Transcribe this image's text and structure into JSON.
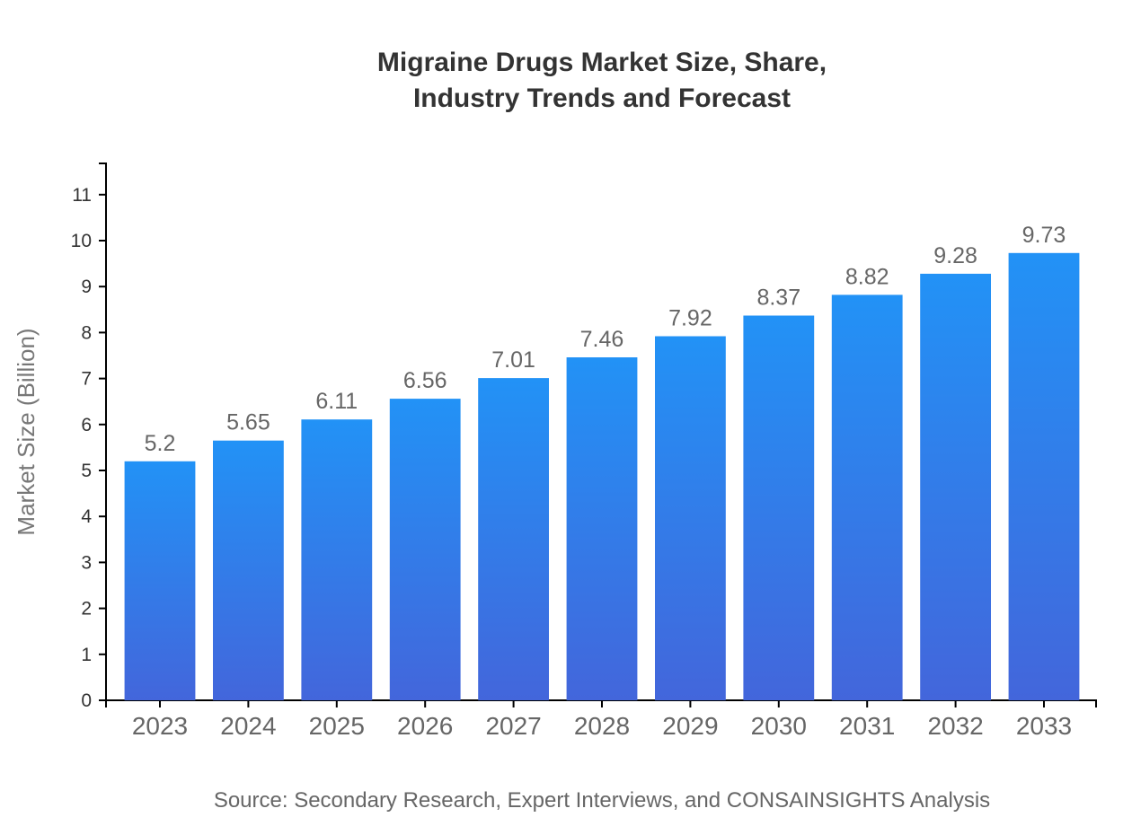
{
  "page": {
    "background": "#ffffff"
  },
  "header": {
    "title_line1": "Migraine Drugs Market Size, Share,",
    "title_line2": "Industry Trends and Forecast"
  },
  "footer": {
    "source": "Source: Secondary Research, Expert Interviews, and CONSAINSIGHTS Analysis"
  },
  "chart_data": {
    "type": "bar",
    "title": "Migraine Drugs Market Size, Share, Industry Trends and Forecast",
    "categories": [
      "2023",
      "2024",
      "2025",
      "2026",
      "2027",
      "2028",
      "2029",
      "2030",
      "2031",
      "2032",
      "2033"
    ],
    "values": [
      5.2,
      5.65,
      6.11,
      6.56,
      7.01,
      7.46,
      7.92,
      8.37,
      8.82,
      9.28,
      9.73
    ],
    "xlabel": "",
    "ylabel": "Market Size (Billion)",
    "ylim": [
      0,
      11.68
    ],
    "yticks": [
      0,
      1,
      2,
      3,
      4,
      5,
      6,
      7,
      8,
      9,
      10,
      11
    ],
    "grid": false,
    "legend": false,
    "value_labels_shown": true,
    "colors": {
      "bar_gradient_top": "#2292F6",
      "bar_gradient_bottom": "#4366DB",
      "axis_line": "#000000",
      "y_tick_label": "#333333",
      "x_tick_label": "#666666",
      "value_label": "#666666",
      "ylabel_text": "#777777",
      "title_text": "#333333",
      "source_text": "#666666"
    }
  }
}
